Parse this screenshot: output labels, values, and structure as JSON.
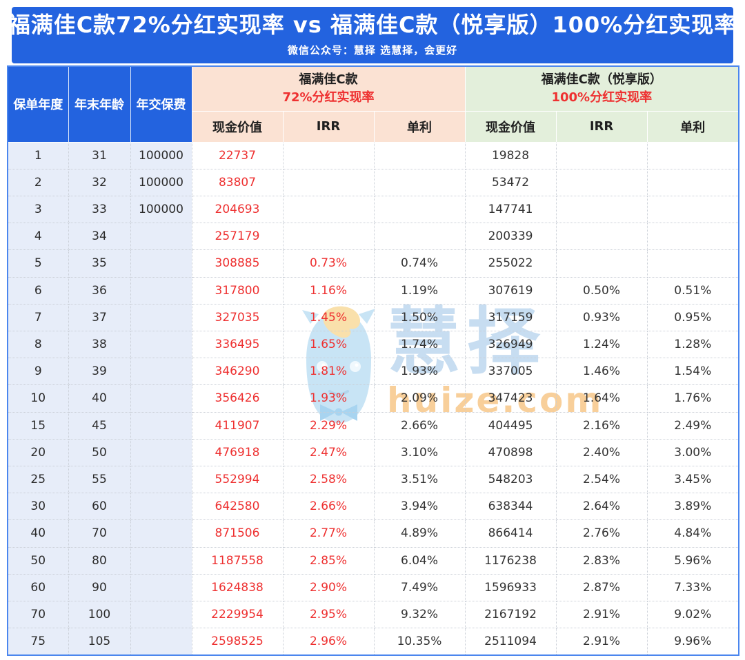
{
  "title": "福满佳C款72%分红实现率 vs 福满佳C款（悦享版）100%分红实现率",
  "subtitle": "微信公众号：慧择  选慧择，会更好",
  "watermark": {
    "brand": "慧择",
    "domain": "huize.com"
  },
  "colors": {
    "header_blue": "#2363df",
    "table_border_blue": "#4b86ee",
    "peach": "#fbe2d3",
    "green": "#e3efdb",
    "lavender": "#e7edf9",
    "red": "#ee3030",
    "grid_dotted": "#c9ced6",
    "watermark_blue": "#c7ddf1",
    "watermark_orange": "#f8cf9a"
  },
  "table": {
    "row_headers": [
      "保单年度",
      "年末年龄",
      "年交保费"
    ],
    "groups": [
      {
        "name": "福满佳C款",
        "rate_line": "72%分红实现率",
        "subcols": [
          "现金价值",
          "IRR",
          "单利"
        ]
      },
      {
        "name": "福满佳C款（悦享版）",
        "rate_line": "100%分红实现率",
        "subcols": [
          "现金价值",
          "IRR",
          "单利"
        ]
      }
    ],
    "col_keys": [
      "policy-year",
      "age-year-end",
      "annual-premium",
      "cash-value-72",
      "irr-72",
      "simple-rate-72",
      "cash-value-100",
      "irr-100",
      "simple-rate-100"
    ]
  },
  "chart_data": {
    "type": "table",
    "title": "福满佳C款72%分红实现率 vs 福满佳C款（悦享版）100%分红实现率",
    "columns": [
      "保单年度",
      "年末年龄",
      "年交保费",
      "福满佳C款72%分红实现率-现金价值",
      "福满佳C款72%分红实现率-IRR",
      "福满佳C款72%分红实现率-单利",
      "福满佳C款（悦享版）100%分红实现率-现金价值",
      "福满佳C款（悦享版）100%分红实现率-IRR",
      "福满佳C款（悦享版）100%分红实现率-单利"
    ],
    "rows": [
      [
        "1",
        "31",
        "100000",
        "22737",
        "",
        "",
        "19828",
        "",
        ""
      ],
      [
        "2",
        "32",
        "100000",
        "83807",
        "",
        "",
        "53472",
        "",
        ""
      ],
      [
        "3",
        "33",
        "100000",
        "204693",
        "",
        "",
        "147741",
        "",
        ""
      ],
      [
        "4",
        "34",
        "",
        "257179",
        "",
        "",
        "200339",
        "",
        ""
      ],
      [
        "5",
        "35",
        "",
        "308885",
        "0.73%",
        "0.74%",
        "255022",
        "",
        ""
      ],
      [
        "6",
        "36",
        "",
        "317800",
        "1.16%",
        "1.19%",
        "307619",
        "0.50%",
        "0.51%"
      ],
      [
        "7",
        "37",
        "",
        "327035",
        "1.45%",
        "1.50%",
        "317159",
        "0.93%",
        "0.95%"
      ],
      [
        "8",
        "38",
        "",
        "336495",
        "1.65%",
        "1.74%",
        "326949",
        "1.24%",
        "1.28%"
      ],
      [
        "9",
        "39",
        "",
        "346290",
        "1.81%",
        "1.93%",
        "337005",
        "1.46%",
        "1.54%"
      ],
      [
        "10",
        "40",
        "",
        "356426",
        "1.93%",
        "2.09%",
        "347423",
        "1.64%",
        "1.76%"
      ],
      [
        "15",
        "45",
        "",
        "411907",
        "2.29%",
        "2.66%",
        "404495",
        "2.16%",
        "2.49%"
      ],
      [
        "20",
        "50",
        "",
        "476918",
        "2.47%",
        "3.10%",
        "470898",
        "2.40%",
        "3.00%"
      ],
      [
        "25",
        "55",
        "",
        "552994",
        "2.58%",
        "3.51%",
        "548203",
        "2.54%",
        "3.45%"
      ],
      [
        "30",
        "60",
        "",
        "642580",
        "2.66%",
        "3.94%",
        "638344",
        "2.64%",
        "3.89%"
      ],
      [
        "40",
        "70",
        "",
        "871506",
        "2.77%",
        "4.89%",
        "866414",
        "2.76%",
        "4.84%"
      ],
      [
        "50",
        "80",
        "",
        "1187558",
        "2.85%",
        "6.04%",
        "1176238",
        "2.83%",
        "5.96%"
      ],
      [
        "60",
        "90",
        "",
        "1624838",
        "2.90%",
        "7.49%",
        "1596933",
        "2.87%",
        "7.33%"
      ],
      [
        "70",
        "100",
        "",
        "2229954",
        "2.95%",
        "9.32%",
        "2167192",
        "2.91%",
        "9.02%"
      ],
      [
        "75",
        "105",
        "",
        "2598525",
        "2.96%",
        "10.35%",
        "2511094",
        "2.91%",
        "9.96%"
      ]
    ]
  }
}
